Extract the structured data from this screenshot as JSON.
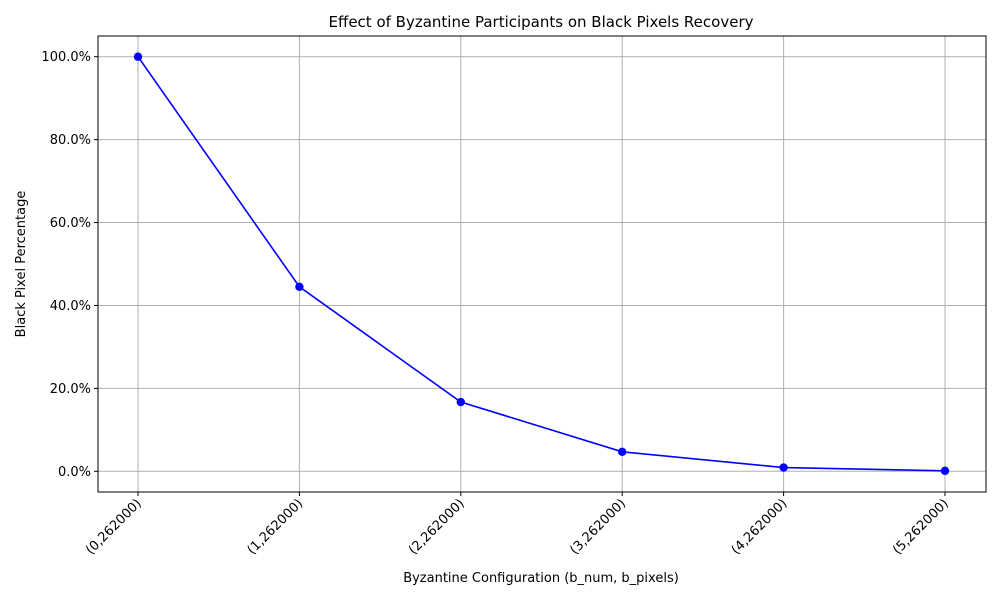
{
  "chart_data": {
    "type": "line",
    "title": "Effect of Byzantine Participants on Black Pixels Recovery",
    "xlabel": "Byzantine Configuration (b_num, b_pixels)",
    "ylabel": "Black Pixel Percentage",
    "categories": [
      "(0,262000)",
      "(1,262000)",
      "(2,262000)",
      "(3,262000)",
      "(4,262000)",
      "(5,262000)"
    ],
    "series": [
      {
        "values": [
          100.0,
          44.5,
          16.7,
          4.7,
          0.9,
          0.1
        ],
        "color": "#0000ff",
        "marker": "circle"
      }
    ],
    "ylim": [
      -5,
      105
    ],
    "yticks": [
      0,
      20,
      40,
      60,
      80,
      100
    ],
    "ytick_labels": [
      "0.0%",
      "20.0%",
      "40.0%",
      "60.0%",
      "80.0%",
      "100.0%"
    ],
    "grid": true,
    "xtick_rotation": 45
  }
}
